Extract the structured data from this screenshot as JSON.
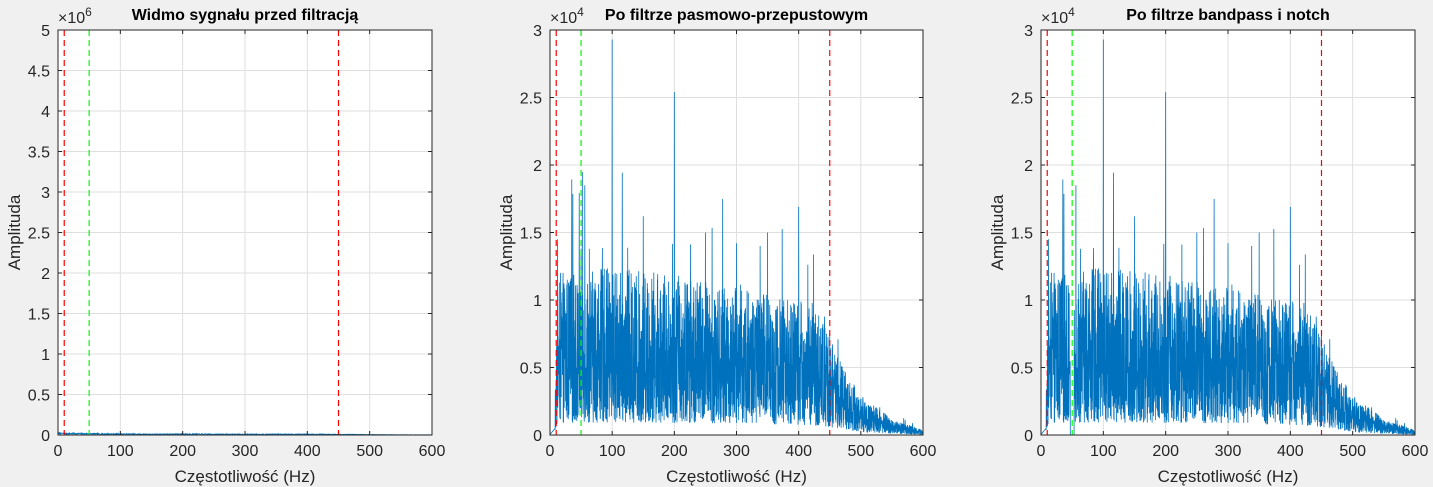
{
  "chart_data": [
    {
      "type": "line",
      "title": "Widmo sygnału przed filtracją",
      "xlabel": "Częstotliwość (Hz)",
      "ylabel": "Amplituda",
      "xlim": [
        0,
        600
      ],
      "ylim": [
        0,
        5
      ],
      "y_multiplier": "×10^6",
      "y_exponent_base": "×10",
      "y_exponent_power": "6",
      "xticks": [
        "0",
        "100",
        "200",
        "300",
        "400",
        "500",
        "600"
      ],
      "yticks": [
        "0",
        "0.5",
        "1",
        "1.5",
        "2",
        "2.5",
        "3",
        "3.5",
        "4",
        "4.5",
        "5"
      ],
      "grid": true,
      "vlines": [
        {
          "x": 10,
          "color": "#ff0000",
          "style": "dashed"
        },
        {
          "x": 50,
          "color": "#00ff00",
          "style": "dashed"
        },
        {
          "x": 450,
          "color": "#ff0000",
          "style": "dashed"
        }
      ],
      "series": [
        {
          "color": "#0072bd",
          "x": [
            0,
            50,
            100,
            150,
            200,
            250,
            300,
            350,
            400,
            450,
            500,
            550,
            600
          ],
          "y": [
            0.02,
            0.015,
            0.012,
            0.01,
            0.012,
            0.01,
            0.009,
            0.01,
            0.009,
            0.008,
            0.005,
            0.003,
            0.002
          ]
        }
      ]
    },
    {
      "type": "line",
      "title": "Po filtrze pasmowo-przepustowym",
      "xlabel": "Częstotliwość (Hz)",
      "ylabel": "Amplituda",
      "xlim": [
        0,
        600
      ],
      "ylim": [
        0,
        3
      ],
      "y_multiplier": "×10^4",
      "y_exponent_base": "×10",
      "y_exponent_power": "4",
      "xticks": [
        "0",
        "100",
        "200",
        "300",
        "400",
        "500",
        "600"
      ],
      "yticks": [
        "0",
        "0.5",
        "1",
        "1.5",
        "2",
        "2.5",
        "3"
      ],
      "grid": true,
      "vlines": [
        {
          "x": 10,
          "color": "#ff0000",
          "style": "dashed"
        },
        {
          "x": 50,
          "color": "#00ff00",
          "style": "dashed"
        },
        {
          "x": 450,
          "color": "#ff0000",
          "style": "dashed"
        }
      ],
      "series": [
        {
          "color": "#0072bd",
          "peaks": [
            {
              "x": 12,
              "y": 1.45
            },
            {
              "x": 50,
              "y": 1.38
            },
            {
              "x": 56,
              "y": 1.85
            },
            {
              "x": 100,
              "y": 2.93
            },
            {
              "x": 150,
              "y": 1.62
            },
            {
              "x": 200,
              "y": 2.54
            },
            {
              "x": 250,
              "y": 1.5
            },
            {
              "x": 300,
              "y": 1.42
            },
            {
              "x": 350,
              "y": 1.5
            },
            {
              "x": 400,
              "y": 1.69
            },
            {
              "x": 450,
              "y": 0.75
            }
          ],
          "envelope": {
            "x": [
              0,
              10,
              15,
              100,
              200,
              300,
              400,
              440,
              460,
              500,
              550,
              600
            ],
            "y": [
              0.02,
              0.3,
              0.6,
              0.62,
              0.6,
              0.55,
              0.5,
              0.45,
              0.3,
              0.15,
              0.06,
              0.02
            ]
          }
        }
      ]
    },
    {
      "type": "line",
      "title": "Po filtrze bandpass i notch",
      "xlabel": "Częstotliwość (Hz)",
      "ylabel": "Amplituda",
      "xlim": [
        0,
        600
      ],
      "ylim": [
        0,
        3
      ],
      "y_multiplier": "×10^4",
      "y_exponent_base": "×10",
      "y_exponent_power": "4",
      "xticks": [
        "0",
        "100",
        "200",
        "300",
        "400",
        "500",
        "600"
      ],
      "yticks": [
        "0",
        "0.5",
        "1",
        "1.5",
        "2",
        "2.5",
        "3"
      ],
      "grid": true,
      "vlines": [
        {
          "x": 10,
          "color": "#ff0000",
          "style": "dashed"
        },
        {
          "x": 50,
          "color": "#00ff00",
          "style": "dashed"
        },
        {
          "x": 450,
          "color": "#ff0000",
          "style": "dashed"
        }
      ],
      "series": [
        {
          "color": "#0072bd",
          "notch": {
            "x": 50,
            "width": 3
          },
          "peaks": [
            {
              "x": 12,
              "y": 1.45
            },
            {
              "x": 56,
              "y": 1.85
            },
            {
              "x": 100,
              "y": 2.93
            },
            {
              "x": 150,
              "y": 1.62
            },
            {
              "x": 200,
              "y": 2.54
            },
            {
              "x": 250,
              "y": 1.5
            },
            {
              "x": 300,
              "y": 1.42
            },
            {
              "x": 350,
              "y": 1.5
            },
            {
              "x": 400,
              "y": 1.69
            },
            {
              "x": 450,
              "y": 0.75
            }
          ],
          "envelope": {
            "x": [
              0,
              10,
              15,
              100,
              200,
              300,
              400,
              440,
              460,
              500,
              550,
              600
            ],
            "y": [
              0.02,
              0.3,
              0.6,
              0.62,
              0.6,
              0.55,
              0.5,
              0.45,
              0.3,
              0.15,
              0.06,
              0.02
            ]
          }
        }
      ]
    }
  ]
}
